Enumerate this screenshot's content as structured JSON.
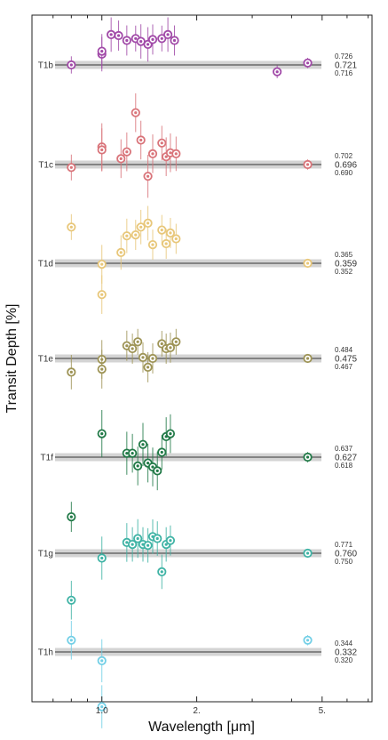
{
  "chart_data": {
    "type": "scatter",
    "xlabel": "Wavelength [μm]",
    "ylabel": "Transit Depth [%]",
    "x_scale": "log",
    "xlim": [
      0.6,
      7.2
    ],
    "x_ticks": [
      {
        "value": 1.0,
        "label": "1.0"
      },
      {
        "value": 2.0,
        "label": "2."
      },
      {
        "value": 5.0,
        "label": "5."
      }
    ],
    "panels": [
      {
        "name": "T1b",
        "color": "#a14aa8",
        "depth": "0.721",
        "upper": "0.726",
        "lower": "0.716",
        "points": [
          [
            0.8,
            0.0
          ],
          [
            1.0,
            0.55
          ],
          [
            1.0,
            0.7
          ],
          [
            1.07,
            1.55
          ],
          [
            1.13,
            1.5
          ],
          [
            1.2,
            1.25
          ],
          [
            1.28,
            1.35
          ],
          [
            1.33,
            1.2
          ],
          [
            1.4,
            1.05
          ],
          [
            1.45,
            1.3
          ],
          [
            1.55,
            1.35
          ],
          [
            1.62,
            1.55
          ],
          [
            1.7,
            1.25
          ],
          [
            3.6,
            -0.35
          ],
          [
            4.5,
            0.1
          ]
        ],
        "errs": [
          0.2,
          0.4,
          0.4,
          0.4,
          0.35,
          0.35,
          0.3,
          0.4,
          0.4,
          0.35,
          0.3,
          0.4,
          0.35,
          0.15,
          0.12
        ]
      },
      {
        "name": "T1c",
        "color": "#d9747a",
        "depth": "0.696",
        "upper": "0.702",
        "lower": "0.690",
        "points": [
          [
            0.8,
            -0.15
          ],
          [
            1.0,
            0.9
          ],
          [
            1.0,
            0.75
          ],
          [
            1.15,
            0.3
          ],
          [
            1.2,
            0.65
          ],
          [
            1.28,
            2.65
          ],
          [
            1.33,
            1.25
          ],
          [
            1.4,
            -0.6
          ],
          [
            1.45,
            0.55
          ],
          [
            1.55,
            1.1
          ],
          [
            1.6,
            0.4
          ],
          [
            1.65,
            0.6
          ],
          [
            1.72,
            0.55
          ],
          [
            4.5,
            0.0
          ]
        ],
        "errs": [
          0.3,
          0.55,
          0.5,
          0.45,
          0.45,
          0.45,
          0.45,
          0.5,
          0.45,
          0.4,
          0.45,
          0.45,
          0.4,
          0.12
        ]
      },
      {
        "name": "T1d",
        "color": "#e8c77a",
        "depth": "0.359",
        "upper": "0.365",
        "lower": "0.352",
        "points": [
          [
            0.8,
            1.85
          ],
          [
            1.0,
            -0.05
          ],
          [
            1.0,
            -1.6
          ],
          [
            1.15,
            0.55
          ],
          [
            1.2,
            1.4
          ],
          [
            1.28,
            1.45
          ],
          [
            1.33,
            1.85
          ],
          [
            1.4,
            2.05
          ],
          [
            1.45,
            0.95
          ],
          [
            1.55,
            1.7
          ],
          [
            1.6,
            1.0
          ],
          [
            1.65,
            1.55
          ],
          [
            1.72,
            1.25
          ],
          [
            4.5,
            0.0
          ]
        ],
        "errs": [
          0.3,
          0.45,
          0.45,
          0.4,
          0.4,
          0.35,
          0.4,
          0.4,
          0.35,
          0.35,
          0.35,
          0.35,
          0.35,
          0.1
        ]
      },
      {
        "name": "T1e",
        "color": "#9e9456",
        "depth": "0.475",
        "upper": "0.484",
        "lower": "0.467",
        "points": [
          [
            0.8,
            -0.7
          ],
          [
            1.0,
            -0.05
          ],
          [
            1.0,
            -0.55
          ],
          [
            1.2,
            0.65
          ],
          [
            1.25,
            0.5
          ],
          [
            1.3,
            0.85
          ],
          [
            1.35,
            0.05
          ],
          [
            1.4,
            -0.45
          ],
          [
            1.45,
            0.0
          ],
          [
            1.55,
            0.75
          ],
          [
            1.6,
            0.5
          ],
          [
            1.65,
            0.55
          ],
          [
            1.72,
            0.85
          ],
          [
            4.5,
            0.0
          ]
        ],
        "errs": [
          0.4,
          0.45,
          0.45,
          0.35,
          0.35,
          0.3,
          0.35,
          0.35,
          0.35,
          0.3,
          0.35,
          0.35,
          0.3,
          0.1
        ]
      },
      {
        "name": "T1f",
        "color": "#227a48",
        "depth": "0.627",
        "upper": "0.637",
        "lower": "0.618",
        "points": [
          [
            0.8,
            -3.05
          ],
          [
            1.0,
            1.2
          ],
          [
            1.2,
            0.2
          ],
          [
            1.25,
            0.2
          ],
          [
            1.3,
            -0.45
          ],
          [
            1.35,
            0.65
          ],
          [
            1.4,
            -0.3
          ],
          [
            1.45,
            -0.5
          ],
          [
            1.5,
            -0.7
          ],
          [
            1.55,
            0.25
          ],
          [
            1.6,
            1.05
          ],
          [
            1.65,
            1.2
          ],
          [
            4.5,
            0.0
          ]
        ],
        "errs": [
          0.35,
          0.55,
          0.5,
          0.45,
          0.45,
          0.5,
          0.45,
          0.45,
          0.45,
          0.4,
          0.45,
          0.45,
          0.12
        ]
      },
      {
        "name": "T1g",
        "color": "#3fb3a5",
        "depth": "0.760",
        "upper": "0.771",
        "lower": "0.750",
        "points": [
          [
            0.8,
            -2.4
          ],
          [
            1.0,
            -0.25
          ],
          [
            1.2,
            0.55
          ],
          [
            1.25,
            0.45
          ],
          [
            1.3,
            0.75
          ],
          [
            1.35,
            0.45
          ],
          [
            1.4,
            0.4
          ],
          [
            1.45,
            0.85
          ],
          [
            1.5,
            0.75
          ],
          [
            1.55,
            -0.95
          ],
          [
            1.6,
            0.45
          ],
          [
            1.65,
            0.65
          ],
          [
            4.5,
            0.0
          ]
        ],
        "errs": [
          0.45,
          0.5,
          0.45,
          0.4,
          0.45,
          0.4,
          0.4,
          0.4,
          0.4,
          0.4,
          0.4,
          0.35,
          0.1
        ]
      },
      {
        "name": "T1h",
        "color": "#72cfe6",
        "depth": "0.332",
        "upper": "0.344",
        "lower": "0.320",
        "points": [
          [
            0.8,
            0.6
          ],
          [
            1.0,
            -0.45
          ],
          [
            1.0,
            -2.8
          ],
          [
            4.5,
            0.6
          ]
        ],
        "errs": [
          0.45,
          0.5,
          0.5,
          0.12
        ]
      }
    ]
  }
}
